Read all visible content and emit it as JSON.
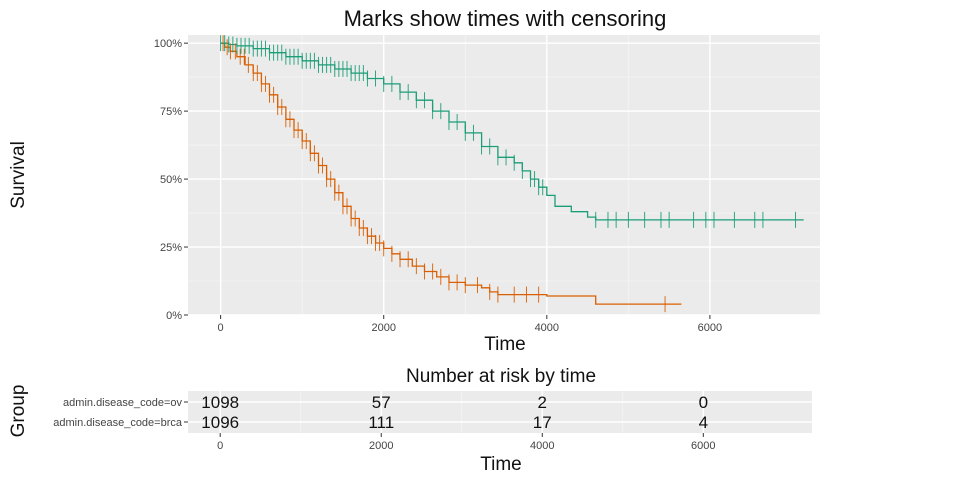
{
  "chart_data": [
    {
      "type": "line",
      "subtype": "kaplan-meier",
      "title": "Marks show times with censoring",
      "xlabel": "Time",
      "ylabel": "Survival",
      "xlim": [
        -400,
        7350
      ],
      "ylim": [
        0,
        1.03
      ],
      "x_ticks": [
        0,
        2000,
        4000,
        6000
      ],
      "x_tick_labels": [
        "0",
        "2000",
        "4000",
        "6000"
      ],
      "y_ticks": [
        0,
        0.25,
        0.5,
        0.75,
        1.0
      ],
      "y_tick_labels": [
        "0%",
        "25%",
        "50%",
        "75%",
        "100%"
      ],
      "grid": true,
      "series": [
        {
          "key": "ov",
          "color": "#D95F02",
          "points": [
            [
              0,
              1.0
            ],
            [
              50,
              0.985
            ],
            [
              120,
              0.97
            ],
            [
              200,
              0.95
            ],
            [
              300,
              0.92
            ],
            [
              400,
              0.89
            ],
            [
              500,
              0.85
            ],
            [
              600,
              0.81
            ],
            [
              700,
              0.765
            ],
            [
              800,
              0.72
            ],
            [
              900,
              0.68
            ],
            [
              1000,
              0.64
            ],
            [
              1100,
              0.595
            ],
            [
              1200,
              0.55
            ],
            [
              1300,
              0.5
            ],
            [
              1400,
              0.45
            ],
            [
              1500,
              0.4
            ],
            [
              1600,
              0.355
            ],
            [
              1700,
              0.32
            ],
            [
              1800,
              0.29
            ],
            [
              1900,
              0.265
            ],
            [
              2000,
              0.245
            ],
            [
              2100,
              0.225
            ],
            [
              2200,
              0.205
            ],
            [
              2350,
              0.18
            ],
            [
              2500,
              0.16
            ],
            [
              2650,
              0.14
            ],
            [
              2800,
              0.12
            ],
            [
              3000,
              0.11
            ],
            [
              3200,
              0.1
            ],
            [
              3300,
              0.085
            ],
            [
              3400,
              0.075
            ],
            [
              3600,
              0.075
            ],
            [
              3800,
              0.075
            ],
            [
              4000,
              0.07
            ],
            [
              4600,
              0.07
            ],
            [
              4600,
              0.04
            ],
            [
              5650,
              0.04
            ]
          ],
          "censor_x": [
            30,
            80,
            120,
            180,
            240,
            290,
            340,
            400,
            450,
            500,
            550,
            600,
            650,
            700,
            750,
            800,
            850,
            900,
            950,
            1000,
            1050,
            1100,
            1150,
            1200,
            1250,
            1300,
            1350,
            1400,
            1450,
            1500,
            1550,
            1600,
            1650,
            1700,
            1750,
            1800,
            1850,
            1900,
            1950,
            2000,
            2100,
            2200,
            2300,
            2400,
            2500,
            2600,
            2700,
            2800,
            2900,
            3000,
            3150,
            3300,
            3400,
            3600,
            3750,
            3900,
            5450
          ]
        },
        {
          "key": "brca",
          "color": "#1B9E77",
          "points": [
            [
              0,
              1.0
            ],
            [
              100,
              0.995
            ],
            [
              200,
              0.99
            ],
            [
              400,
              0.98
            ],
            [
              600,
              0.965
            ],
            [
              800,
              0.95
            ],
            [
              1000,
              0.935
            ],
            [
              1200,
              0.92
            ],
            [
              1400,
              0.905
            ],
            [
              1600,
              0.89
            ],
            [
              1800,
              0.87
            ],
            [
              2000,
              0.85
            ],
            [
              2200,
              0.82
            ],
            [
              2400,
              0.79
            ],
            [
              2600,
              0.75
            ],
            [
              2800,
              0.71
            ],
            [
              3000,
              0.67
            ],
            [
              3200,
              0.62
            ],
            [
              3400,
              0.58
            ],
            [
              3600,
              0.56
            ],
            [
              3700,
              0.53
            ],
            [
              3800,
              0.5
            ],
            [
              3900,
              0.47
            ],
            [
              4000,
              0.44
            ],
            [
              4100,
              0.4
            ],
            [
              4300,
              0.38
            ],
            [
              4500,
              0.36
            ],
            [
              4600,
              0.35
            ],
            [
              7000,
              0.35
            ],
            [
              7150,
              0.35
            ]
          ],
          "censor_x": [
            0,
            50,
            100,
            150,
            200,
            250,
            300,
            350,
            400,
            450,
            500,
            550,
            600,
            650,
            700,
            750,
            800,
            850,
            900,
            950,
            1000,
            1050,
            1100,
            1150,
            1200,
            1250,
            1300,
            1350,
            1400,
            1450,
            1500,
            1550,
            1600,
            1650,
            1700,
            1750,
            1800,
            1900,
            2000,
            2100,
            2200,
            2300,
            2400,
            2500,
            2600,
            2700,
            2800,
            2900,
            3000,
            3100,
            3200,
            3300,
            3400,
            3500,
            3600,
            3700,
            3800,
            3850,
            3900,
            3950,
            4600,
            4750,
            4850,
            5000,
            5200,
            5400,
            5500,
            5800,
            5950,
            6050,
            6300,
            6550,
            6650,
            7050
          ]
        }
      ]
    },
    {
      "type": "table",
      "title": "Number at risk by time",
      "xlabel": "Time",
      "ylabel": "Group",
      "xlim": [
        -400,
        7350
      ],
      "x_ticks": [
        0,
        2000,
        4000,
        6000
      ],
      "x_tick_labels": [
        "0",
        "2000",
        "4000",
        "6000"
      ],
      "rows": [
        {
          "label": "admin.disease_code=ov",
          "values": [
            "1098",
            "57",
            "2",
            "0"
          ]
        },
        {
          "label": "admin.disease_code=brca",
          "values": [
            "1096",
            "111",
            "17",
            "4"
          ]
        }
      ]
    }
  ]
}
